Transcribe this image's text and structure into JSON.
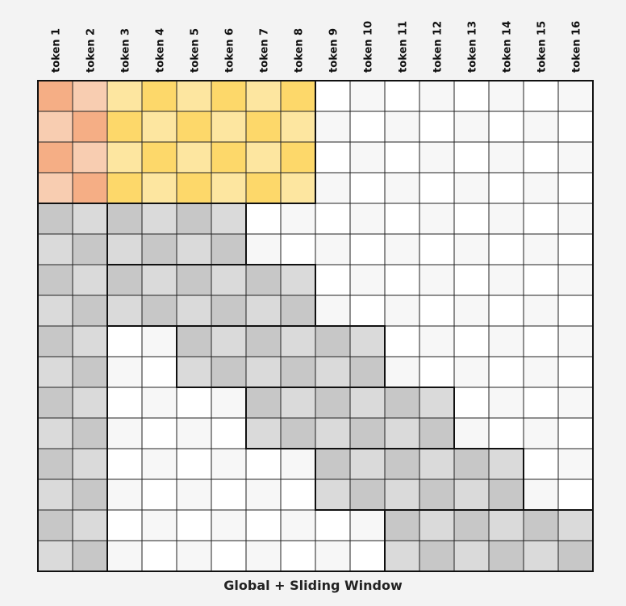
{
  "title": "Global + Sliding Window",
  "tokens": [
    "token 1",
    "token 2",
    "token 3",
    "token 4",
    "token 5",
    "token 6",
    "token 7",
    "token 8",
    "token 9",
    "token 10",
    "token 11",
    "token 12",
    "token 13",
    "token 14",
    "token 15",
    "token 16"
  ],
  "global_token_count": 2,
  "sliding_window_blocks": 2,
  "colors": {
    "global_dark": "#f5ae85",
    "global_light": "#f8cdb1",
    "yellow_dark": "#fdd86a",
    "yellow_light": "#fde6a0",
    "gray_dark": "#c7c7c7",
    "gray_light": "#dadada",
    "empty_a": "#ffffff",
    "empty_b": "#f7f7f7",
    "grid_line": "#222222"
  }
}
